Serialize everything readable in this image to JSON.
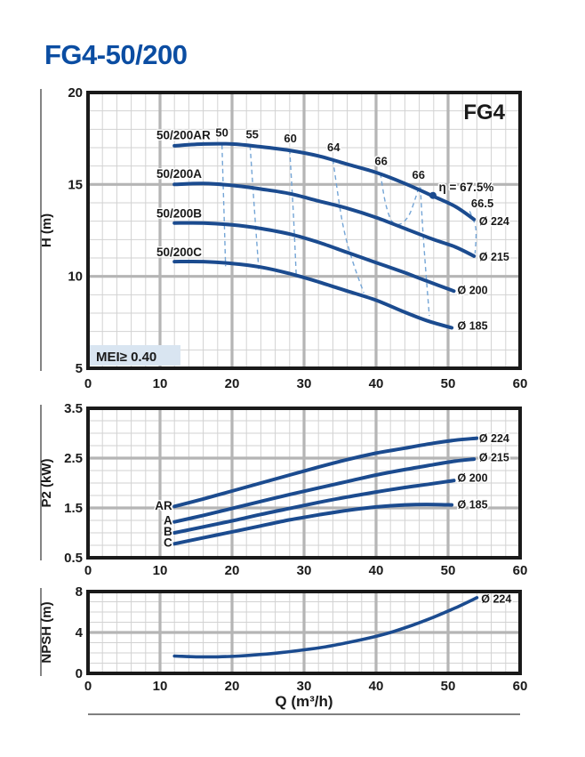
{
  "title": "FG4-50/200",
  "colors": {
    "accent": "#0b4da2",
    "curve": "#1b4b8f",
    "contour": "#74a5d6",
    "grid_minor": "#d2d2d2",
    "grid_major": "#b5b5b5",
    "frame": "#1a1a1a",
    "mei_bg": "#d9e5f1",
    "text": "#1a1a1a"
  },
  "chart_data": [
    {
      "type": "line",
      "badge": "FG4",
      "ylabel": "H (m)",
      "xlabel": "",
      "xlim": [
        0,
        60
      ],
      "ylim": [
        5,
        20
      ],
      "x_ticks": [
        0,
        10,
        20,
        30,
        40,
        50,
        60
      ],
      "y_ticks": [
        5,
        10,
        15,
        20
      ],
      "x_minor_step": 2,
      "y_minor_step": 1,
      "x_major_inner": [
        10,
        20,
        30,
        40,
        50
      ],
      "y_major_inner": [
        10,
        15
      ],
      "mei_label": "MEI≥ 0.40",
      "name_anchor": "start",
      "series": [
        {
          "name": "50/200AR",
          "end_label": "Ø 224",
          "name_label_at": [
            9.5,
            17.45
          ],
          "end_label_at": [
            54.3,
            12.8
          ],
          "points": [
            [
              12,
              17.1
            ],
            [
              16,
              17.2
            ],
            [
              20,
              17.2
            ],
            [
              24,
              17.05
            ],
            [
              28,
              16.85
            ],
            [
              32,
              16.55
            ],
            [
              36,
              16.1
            ],
            [
              40,
              15.65
            ],
            [
              44,
              15.05
            ],
            [
              48,
              14.35
            ],
            [
              51,
              13.8
            ],
            [
              53.6,
              13.1
            ]
          ]
        },
        {
          "name": "50/200A",
          "end_label": "Ø 215",
          "name_label_at": [
            9.5,
            15.35
          ],
          "end_label_at": [
            54.3,
            10.85
          ],
          "points": [
            [
              12,
              15.0
            ],
            [
              16,
              15.05
            ],
            [
              20,
              14.95
            ],
            [
              24,
              14.75
            ],
            [
              28,
              14.5
            ],
            [
              32,
              14.1
            ],
            [
              36,
              13.7
            ],
            [
              40,
              13.2
            ],
            [
              44,
              12.6
            ],
            [
              48,
              12.0
            ],
            [
              51,
              11.6
            ],
            [
              53.6,
              11.1
            ]
          ]
        },
        {
          "name": "50/200B",
          "end_label": "Ø 200",
          "name_label_at": [
            9.5,
            13.2
          ],
          "end_label_at": [
            51.3,
            9.05
          ],
          "points": [
            [
              12,
              12.9
            ],
            [
              16,
              12.9
            ],
            [
              20,
              12.8
            ],
            [
              24,
              12.6
            ],
            [
              28,
              12.3
            ],
            [
              32,
              11.85
            ],
            [
              36,
              11.3
            ],
            [
              40,
              10.75
            ],
            [
              44,
              10.2
            ],
            [
              47,
              9.75
            ],
            [
              50.8,
              9.2
            ]
          ]
        },
        {
          "name": "50/200C",
          "end_label": "Ø 185",
          "name_label_at": [
            9.5,
            11.1
          ],
          "end_label_at": [
            51.3,
            7.1
          ],
          "points": [
            [
              12,
              10.8
            ],
            [
              16,
              10.8
            ],
            [
              20,
              10.7
            ],
            [
              24,
              10.5
            ],
            [
              28,
              10.15
            ],
            [
              32,
              9.7
            ],
            [
              36,
              9.2
            ],
            [
              40,
              8.7
            ],
            [
              44,
              8.05
            ],
            [
              47,
              7.6
            ],
            [
              50.5,
              7.2
            ]
          ]
        }
      ],
      "efficiency_contours": [
        {
          "label": "50",
          "anchor": "middle",
          "label_at": [
            18.6,
            17.6
          ],
          "points": [
            [
              18.6,
              17.15
            ],
            [
              18.85,
              13.9
            ],
            [
              19.1,
              10.55
            ]
          ]
        },
        {
          "label": "55",
          "anchor": "middle",
          "label_at": [
            22.8,
            17.5
          ],
          "points": [
            [
              22.5,
              17.1
            ],
            [
              23.1,
              13.7
            ],
            [
              23.7,
              10.4
            ]
          ]
        },
        {
          "label": "60",
          "anchor": "middle",
          "label_at": [
            28.1,
            17.3
          ],
          "points": [
            [
              28.0,
              16.9
            ],
            [
              28.5,
              13.5
            ],
            [
              28.9,
              10.15
            ]
          ]
        },
        {
          "label": "64",
          "anchor": "middle",
          "label_at": [
            34.1,
            16.8
          ],
          "points": [
            [
              34.0,
              16.35
            ],
            [
              35.3,
              13.0
            ],
            [
              36.6,
              11.0
            ],
            [
              38.3,
              9.1
            ]
          ]
        },
        {
          "label": "66",
          "anchor": "middle",
          "label_at": [
            40.7,
            16.05
          ],
          "points": [
            [
              40.6,
              15.6
            ],
            [
              41.3,
              14.0
            ],
            [
              42.2,
              13.0
            ],
            [
              43.4,
              12.85
            ],
            [
              44.6,
              13.35
            ],
            [
              45.5,
              14.3
            ],
            [
              45.95,
              14.9
            ]
          ]
        },
        {
          "label": "66",
          "anchor": "middle",
          "label_at": [
            45.9,
            15.3
          ],
          "points": [
            [
              46.15,
              14.85
            ],
            [
              46.5,
              12.5
            ],
            [
              46.9,
              10.3
            ],
            [
              47.4,
              7.85
            ]
          ]
        },
        {
          "label": "66.5",
          "anchor": "start",
          "label_at": [
            53.2,
            13.75
          ],
          "points": [
            [
              53.0,
              13.55
            ],
            [
              53.85,
              12.6
            ],
            [
              53.75,
              11.25
            ]
          ]
        }
      ],
      "bep": {
        "point": [
          47.9,
          14.4
        ],
        "label": "η = 67.5%",
        "label_at": [
          48.7,
          14.62
        ]
      }
    },
    {
      "type": "line",
      "ylabel": "P2 (kW)",
      "xlabel": "",
      "xlim": [
        0,
        60
      ],
      "ylim": [
        0.5,
        3.5
      ],
      "x_ticks": [
        0,
        10,
        20,
        30,
        40,
        50,
        60
      ],
      "y_ticks": [
        0.5,
        1.5,
        2.5,
        3.5
      ],
      "x_minor_step": 2,
      "y_minor_step": 0.25,
      "x_major_inner": [
        10,
        20,
        30,
        40,
        50
      ],
      "y_major_inner": [
        1.5,
        2.5
      ],
      "name_anchor": "end",
      "series": [
        {
          "name": "AR",
          "end_label": "Ø 224",
          "name_label_at": [
            11.7,
            1.46
          ],
          "end_label_at": [
            54.3,
            2.82
          ],
          "points": [
            [
              12,
              1.53
            ],
            [
              16,
              1.68
            ],
            [
              20,
              1.84
            ],
            [
              24,
              2.0
            ],
            [
              28,
              2.16
            ],
            [
              32,
              2.32
            ],
            [
              36,
              2.47
            ],
            [
              40,
              2.6
            ],
            [
              44,
              2.7
            ],
            [
              48,
              2.8
            ],
            [
              51,
              2.86
            ],
            [
              54,
              2.9
            ]
          ]
        },
        {
          "name": "A",
          "end_label": "Ø 215",
          "name_label_at": [
            11.7,
            1.17
          ],
          "end_label_at": [
            54.3,
            2.44
          ],
          "points": [
            [
              12,
              1.22
            ],
            [
              16,
              1.35
            ],
            [
              20,
              1.49
            ],
            [
              24,
              1.63
            ],
            [
              28,
              1.77
            ],
            [
              32,
              1.9
            ],
            [
              36,
              2.03
            ],
            [
              40,
              2.16
            ],
            [
              44,
              2.27
            ],
            [
              48,
              2.37
            ],
            [
              51,
              2.44
            ],
            [
              53.6,
              2.48
            ]
          ]
        },
        {
          "name": "B",
          "end_label": "Ø 200",
          "name_label_at": [
            11.7,
            0.95
          ],
          "end_label_at": [
            51.3,
            2.03
          ],
          "points": [
            [
              12,
              1.0
            ],
            [
              16,
              1.12
            ],
            [
              20,
              1.24
            ],
            [
              24,
              1.37
            ],
            [
              28,
              1.49
            ],
            [
              32,
              1.61
            ],
            [
              36,
              1.72
            ],
            [
              40,
              1.82
            ],
            [
              44,
              1.91
            ],
            [
              47,
              1.97
            ],
            [
              50.8,
              2.05
            ]
          ]
        },
        {
          "name": "C",
          "end_label": "Ø 185",
          "name_label_at": [
            11.7,
            0.72
          ],
          "end_label_at": [
            51.3,
            1.49
          ],
          "points": [
            [
              12,
              0.78
            ],
            [
              16,
              0.9
            ],
            [
              20,
              1.02
            ],
            [
              24,
              1.14
            ],
            [
              28,
              1.26
            ],
            [
              32,
              1.36
            ],
            [
              36,
              1.45
            ],
            [
              40,
              1.52
            ],
            [
              44,
              1.56
            ],
            [
              47,
              1.57
            ],
            [
              50.5,
              1.56
            ]
          ]
        }
      ]
    },
    {
      "type": "line",
      "ylabel": "NPSH (m)",
      "xlabel": "Q (m³/h)",
      "xlim": [
        0,
        60
      ],
      "ylim": [
        0,
        8
      ],
      "x_ticks": [
        0,
        10,
        20,
        30,
        40,
        50,
        60
      ],
      "y_ticks": [
        0,
        4,
        8
      ],
      "x_minor_step": 2,
      "y_minor_step": 1,
      "x_major_inner": [
        10,
        20,
        30,
        40,
        50
      ],
      "y_major_inner": [
        4
      ],
      "name_anchor": "start",
      "series": [
        {
          "name": "Ø 224",
          "end_label": "Ø 224",
          "end_label_at": [
            54.6,
            6.9
          ],
          "points": [
            [
              12,
              1.7
            ],
            [
              15,
              1.62
            ],
            [
              18,
              1.62
            ],
            [
              21,
              1.7
            ],
            [
              24,
              1.85
            ],
            [
              27,
              2.05
            ],
            [
              30,
              2.3
            ],
            [
              33,
              2.6
            ],
            [
              36,
              3.0
            ],
            [
              39,
              3.45
            ],
            [
              42,
              4.0
            ],
            [
              45,
              4.7
            ],
            [
              48,
              5.5
            ],
            [
              51,
              6.4
            ],
            [
              54,
              7.4
            ]
          ]
        }
      ]
    }
  ]
}
